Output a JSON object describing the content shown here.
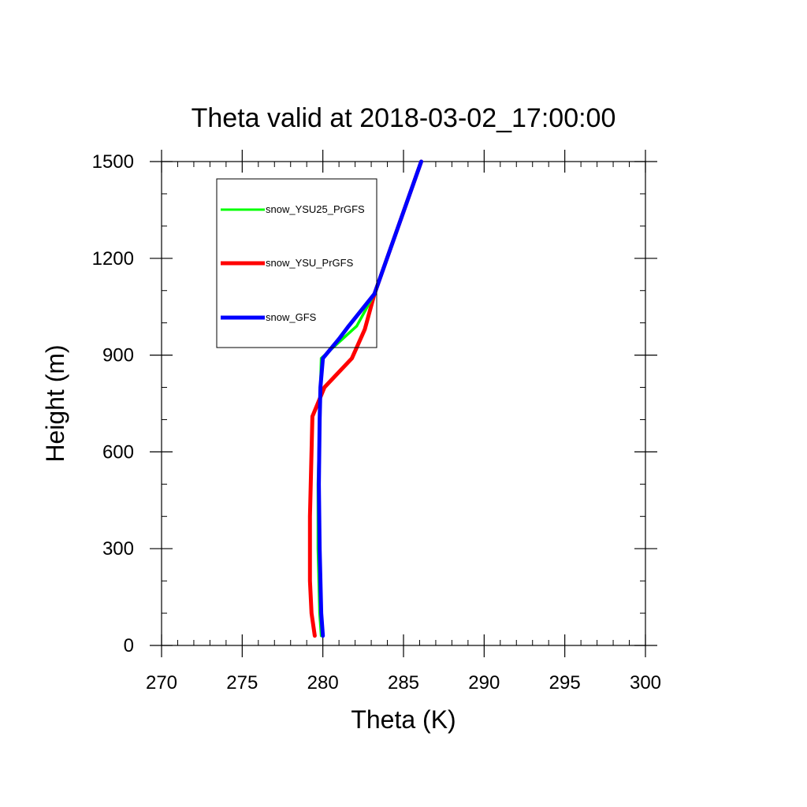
{
  "chart_data": {
    "type": "line",
    "title": "Theta valid at 2018-03-02_17:00:00",
    "xlabel": "Theta (K)",
    "ylabel": "Height (m)",
    "xlim": [
      270,
      300
    ],
    "ylim": [
      0,
      1500
    ],
    "x_ticks": [
      "270",
      "275",
      "280",
      "285",
      "290",
      "295",
      "300"
    ],
    "y_ticks": [
      "0",
      "300",
      "600",
      "900",
      "1200",
      "1500"
    ],
    "x_tick_values": [
      270,
      275,
      280,
      285,
      290,
      295,
      300
    ],
    "y_tick_values": [
      0,
      300,
      600,
      900,
      1200,
      1500
    ],
    "grid": false,
    "legend_position": "top-left",
    "series": [
      {
        "name": "snow_YSU25_PrGFS",
        "color": "#00ff00",
        "points": [
          [
            279.9,
            30
          ],
          [
            279.8,
            100
          ],
          [
            279.7,
            300
          ],
          [
            279.7,
            500
          ],
          [
            279.8,
            700
          ],
          [
            279.85,
            800
          ],
          [
            279.9,
            890
          ],
          [
            281.0,
            940
          ],
          [
            282.1,
            990
          ],
          [
            283.2,
            1090
          ],
          [
            286.1,
            1500
          ]
        ]
      },
      {
        "name": "snow_YSU_PrGFS",
        "color": "#ff0000",
        "points": [
          [
            279.5,
            30
          ],
          [
            279.3,
            100
          ],
          [
            279.2,
            200
          ],
          [
            279.2,
            400
          ],
          [
            279.3,
            600
          ],
          [
            279.35,
            710
          ],
          [
            280.1,
            800
          ],
          [
            281.8,
            890
          ],
          [
            282.6,
            980
          ],
          [
            283.2,
            1090
          ],
          [
            286.1,
            1500
          ]
        ]
      },
      {
        "name": "snow_GFS",
        "color": "#0000ff",
        "points": [
          [
            280.0,
            30
          ],
          [
            279.9,
            100
          ],
          [
            279.8,
            300
          ],
          [
            279.75,
            500
          ],
          [
            279.8,
            700
          ],
          [
            279.85,
            800
          ],
          [
            280.0,
            890
          ],
          [
            281.0,
            950
          ],
          [
            281.6,
            990
          ],
          [
            283.2,
            1090
          ],
          [
            286.1,
            1500
          ]
        ]
      }
    ]
  }
}
